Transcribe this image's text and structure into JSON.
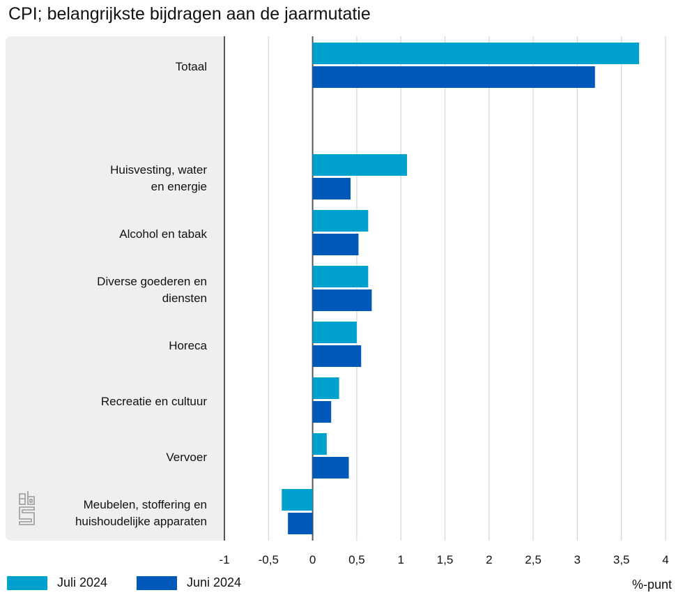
{
  "title": "CPI; belangrijkste bijdragen aan de jaarmutatie",
  "chart_data": {
    "type": "bar",
    "orientation": "horizontal",
    "title": "CPI; belangrijkste bijdragen aan de jaarmutatie",
    "xlabel": "%-punt",
    "xlim": [
      -1,
      4
    ],
    "xticks": [
      "-1",
      "-0,5",
      "0",
      "0,5",
      "1",
      "1,5",
      "2",
      "2,5",
      "3",
      "3,5",
      "4"
    ],
    "grid": true,
    "legend_position": "bottom-left",
    "categories": [
      [
        "Totaal"
      ],
      [
        "Huisvesting, water",
        "en energie"
      ],
      [
        "Alcohol en tabak"
      ],
      [
        "Diverse goederen en",
        "diensten"
      ],
      [
        "Horeca"
      ],
      [
        "Recreatie en cultuur"
      ],
      [
        "Vervoer"
      ],
      [
        "Meubelen, stoffering en",
        "huishoudelijke apparaten"
      ]
    ],
    "series": [
      {
        "name": "Juli 2024",
        "color": "#00a1cd",
        "values": [
          3.7,
          1.07,
          0.63,
          0.63,
          0.5,
          0.3,
          0.16,
          -0.35
        ]
      },
      {
        "name": "Juni 2024",
        "color": "#0058b8",
        "values": [
          3.2,
          0.43,
          0.52,
          0.67,
          0.55,
          0.21,
          0.41,
          -0.28
        ]
      }
    ]
  },
  "logo": "cbs"
}
